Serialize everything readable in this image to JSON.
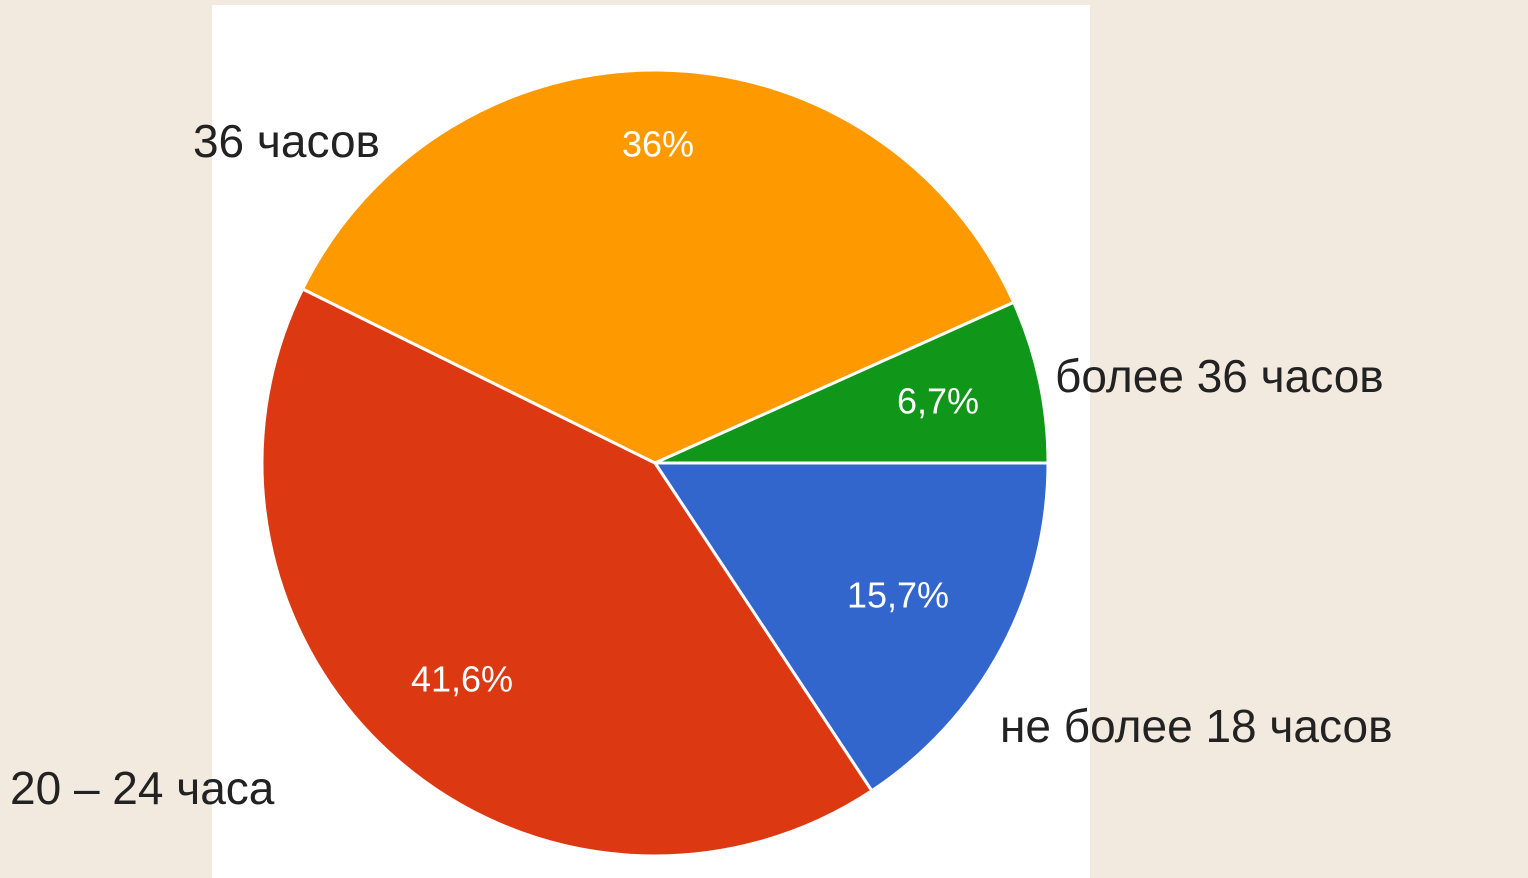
{
  "chart_data": {
    "type": "pie",
    "categories": [
      "не более 18 часов",
      "20 – 24 часа",
      "36 часов",
      "более 36 часов"
    ],
    "values": [
      15.7,
      41.6,
      36,
      6.7
    ],
    "value_labels": [
      "15,7%",
      "41,6%",
      "36%",
      "6,7%"
    ],
    "colors": [
      "#3366cc",
      "#dc3912",
      "#ff9900",
      "#109618"
    ]
  }
}
